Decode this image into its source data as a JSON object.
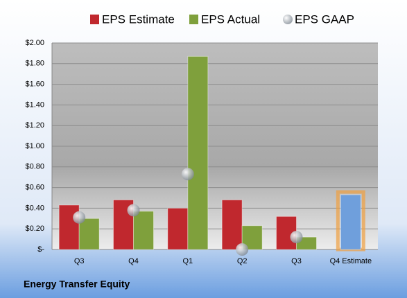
{
  "chart_data": {
    "type": "bar",
    "categories": [
      "Q3",
      "Q4",
      "Q1",
      "Q2",
      "Q3",
      "Q4 Estimate"
    ],
    "series": [
      {
        "name": "EPS Estimate",
        "color": "#c0282e",
        "colors": [
          "#c0282e",
          "#c0282e",
          "#c0282e",
          "#c0282e",
          "#c0282e",
          "#6f9fdc"
        ],
        "values": [
          0.43,
          0.48,
          0.4,
          0.48,
          0.32,
          0.53
        ]
      },
      {
        "name": "EPS Actual",
        "color": "#7fa03c",
        "values": [
          0.3,
          0.37,
          1.87,
          0.23,
          0.12,
          null
        ]
      },
      {
        "name": "EPS GAAP",
        "color": "#a8b0b8",
        "marker": "circle",
        "values": [
          0.31,
          0.38,
          0.73,
          0.0,
          0.12,
          null
        ]
      }
    ],
    "ylim": [
      0,
      2
    ],
    "yticks": [
      {
        "value": 0,
        "label": "$-"
      },
      {
        "value": 0.2,
        "label": "$0.20"
      },
      {
        "value": 0.4,
        "label": "$0.40"
      },
      {
        "value": 0.6,
        "label": "$0.60"
      },
      {
        "value": 0.8,
        "label": "$0.80"
      },
      {
        "value": 1.0,
        "label": "$1.00"
      },
      {
        "value": 1.2,
        "label": "$1.20"
      },
      {
        "value": 1.4,
        "label": "$1.40"
      },
      {
        "value": 1.6,
        "label": "$1.60"
      },
      {
        "value": 1.8,
        "label": "$1.80"
      },
      {
        "value": 2.0,
        "label": "$2.00"
      }
    ],
    "grid": true,
    "legend": "top",
    "footer": "Energy Transfer Equity"
  }
}
